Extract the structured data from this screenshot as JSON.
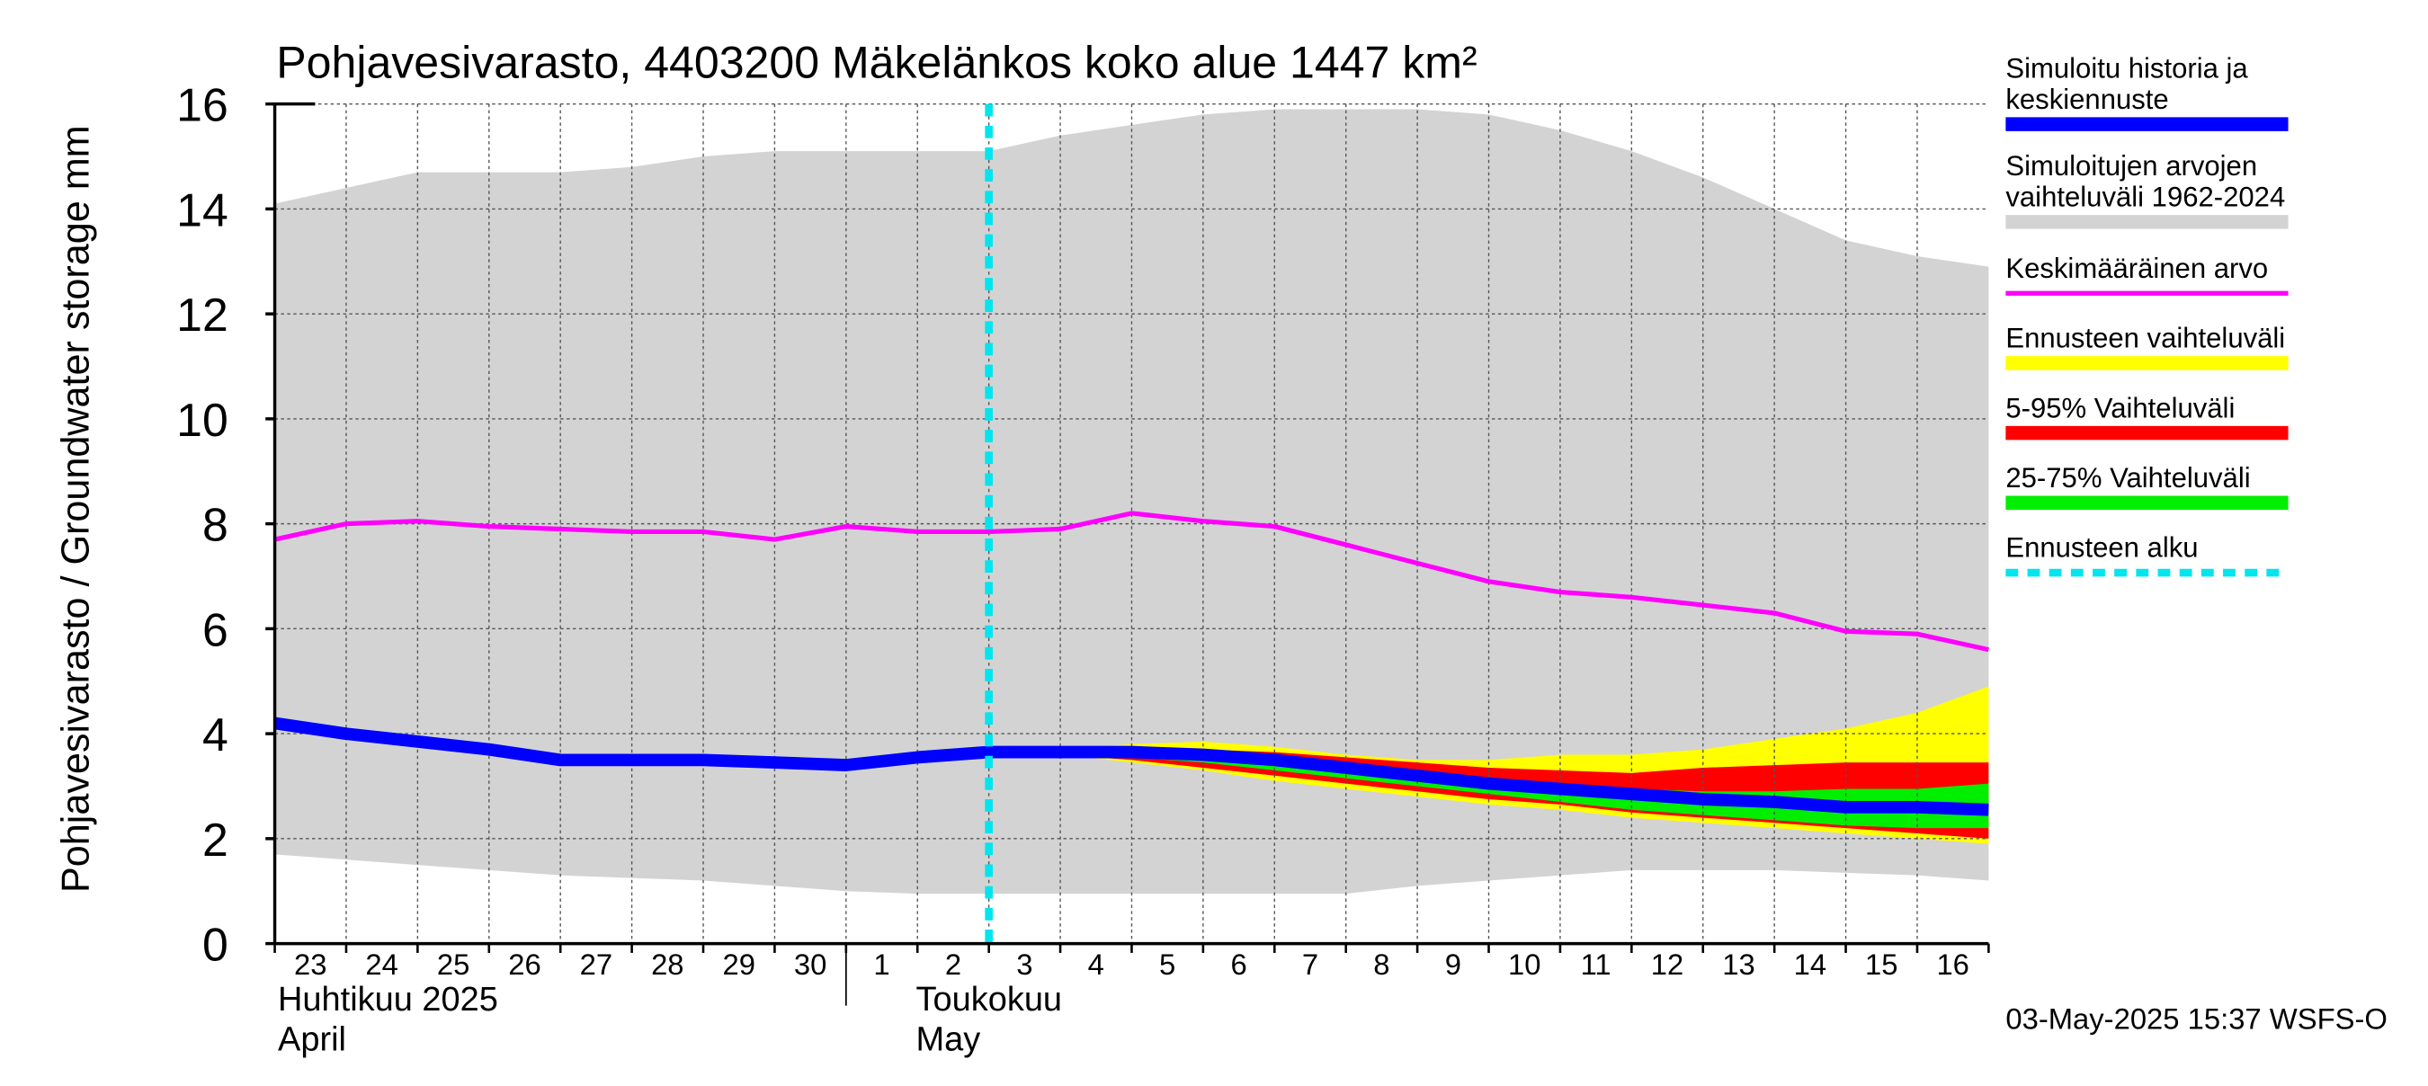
{
  "chart_data": {
    "type": "area",
    "title": "Pohjavesivarasto, 4403200 Mäkelänkos koko alue 1447 km²",
    "ylabel": "Pohjavesivarasto / Groundwater storage   mm",
    "ylim": [
      0,
      16
    ],
    "yticks": [
      0,
      2,
      4,
      6,
      8,
      10,
      12,
      14,
      16
    ],
    "grid": true,
    "legend_position": "right",
    "x_day_labels": [
      "23",
      "24",
      "25",
      "26",
      "27",
      "28",
      "29",
      "30",
      "1",
      "2",
      "3",
      "4",
      "5",
      "6",
      "7",
      "8",
      "9",
      "10",
      "11",
      "12",
      "13",
      "14",
      "15",
      "16"
    ],
    "month_labels": [
      {
        "line1": "Huhtikuu  2025",
        "line2": "April"
      },
      {
        "line1": "Toukokuu",
        "line2": "May"
      }
    ],
    "x_dates": [
      "2025-04-23",
      "2025-04-24",
      "2025-04-25",
      "2025-04-26",
      "2025-04-27",
      "2025-04-28",
      "2025-04-29",
      "2025-04-30",
      "2025-05-01",
      "2025-05-02",
      "2025-05-03",
      "2025-05-04",
      "2025-05-05",
      "2025-05-06",
      "2025-05-07",
      "2025-05-08",
      "2025-05-09",
      "2025-05-10",
      "2025-05-11",
      "2025-05-12",
      "2025-05-13",
      "2025-05-14",
      "2025-05-15",
      "2025-05-16",
      "2025-05-17"
    ],
    "forecast_start": "2025-05-03",
    "series": [
      {
        "name": "Simuloitujen arvojen vaihteluväli 1962-2024",
        "kind": "band",
        "color": "#d3d3d3",
        "upper": [
          14.1,
          14.4,
          14.7,
          14.7,
          14.7,
          14.8,
          15.0,
          15.1,
          15.1,
          15.1,
          15.1,
          15.4,
          15.6,
          15.8,
          15.9,
          15.9,
          15.9,
          15.8,
          15.5,
          15.1,
          14.6,
          14.0,
          13.4,
          13.1,
          12.9
        ],
        "lower": [
          1.7,
          1.6,
          1.5,
          1.4,
          1.3,
          1.25,
          1.2,
          1.1,
          1.0,
          0.95,
          0.95,
          0.95,
          0.95,
          0.95,
          0.95,
          0.95,
          1.1,
          1.2,
          1.3,
          1.4,
          1.4,
          1.4,
          1.35,
          1.3,
          1.2
        ]
      },
      {
        "name": "Ennusteen vaihteluväli",
        "kind": "band",
        "color": "#ffff00",
        "x_start_index": 10,
        "upper": [
          3.6,
          3.7,
          3.8,
          3.85,
          3.75,
          3.6,
          3.5,
          3.5,
          3.6,
          3.6,
          3.7,
          3.9,
          4.1,
          4.4,
          4.9
        ],
        "lower": [
          3.6,
          3.6,
          3.45,
          3.3,
          3.1,
          2.95,
          2.8,
          2.65,
          2.55,
          2.4,
          2.3,
          2.2,
          2.1,
          2.0,
          1.9
        ]
      },
      {
        "name": "5-95% Vaihteluväli",
        "kind": "band",
        "color": "#ff0000",
        "x_start_index": 10,
        "upper": [
          3.6,
          3.65,
          3.7,
          3.7,
          3.65,
          3.55,
          3.45,
          3.35,
          3.3,
          3.25,
          3.35,
          3.4,
          3.45,
          3.45,
          3.45
        ],
        "lower": [
          3.6,
          3.6,
          3.5,
          3.35,
          3.2,
          3.05,
          2.9,
          2.75,
          2.65,
          2.5,
          2.4,
          2.3,
          2.2,
          2.1,
          2.0
        ]
      },
      {
        "name": "25-75% Vaihteluväli",
        "kind": "band",
        "color": "#00ee00",
        "x_start_index": 10,
        "upper": [
          3.6,
          3.62,
          3.62,
          3.55,
          3.45,
          3.35,
          3.25,
          3.15,
          3.05,
          2.95,
          2.9,
          2.9,
          2.95,
          2.95,
          3.05
        ],
        "lower": [
          3.6,
          3.6,
          3.55,
          3.45,
          3.3,
          3.15,
          3.0,
          2.85,
          2.7,
          2.55,
          2.45,
          2.35,
          2.25,
          2.2,
          2.2
        ]
      },
      {
        "name": "Keskimääräinen arvo",
        "kind": "line",
        "color": "#ff00ff",
        "values": [
          7.7,
          8.0,
          8.05,
          7.95,
          7.9,
          7.85,
          7.85,
          7.7,
          7.95,
          7.85,
          7.85,
          7.9,
          8.2,
          8.05,
          7.95,
          7.6,
          7.25,
          6.9,
          6.7,
          6.6,
          6.45,
          6.3,
          5.95,
          5.9,
          5.6
        ]
      },
      {
        "name": "Simuloitu historia ja keskiennuste",
        "kind": "line",
        "color": "#0000ff",
        "values": [
          4.2,
          4.0,
          3.85,
          3.7,
          3.5,
          3.5,
          3.5,
          3.45,
          3.4,
          3.55,
          3.65,
          3.65,
          3.65,
          3.6,
          3.5,
          3.35,
          3.2,
          3.05,
          2.95,
          2.85,
          2.75,
          2.7,
          2.6,
          2.6,
          2.55
        ]
      },
      {
        "name": "Ennusteen alku",
        "kind": "vline",
        "color": "#00e5ee",
        "at": "2025-05-03"
      }
    ]
  },
  "legend": [
    {
      "lines": [
        "Simuloitu historia ja",
        "keskiennuste"
      ],
      "color": "#0000ff",
      "style": "thick"
    },
    {
      "lines": [
        "Simuloitujen arvojen",
        "vaihteluväli 1962-2024"
      ],
      "color": "#d3d3d3",
      "style": "thick"
    },
    {
      "lines": [
        "Keskimääräinen arvo"
      ],
      "color": "#ff00ff",
      "style": "thin"
    },
    {
      "lines": [
        "Ennusteen vaihteluväli"
      ],
      "color": "#ffff00",
      "style": "thick"
    },
    {
      "lines": [
        "5-95% Vaihteluväli"
      ],
      "color": "#ff0000",
      "style": "thick"
    },
    {
      "lines": [
        "25-75% Vaihteluväli"
      ],
      "color": "#00ee00",
      "style": "thick"
    },
    {
      "lines": [
        "Ennusteen alku"
      ],
      "color": "#00e5ee",
      "style": "dashed"
    }
  ],
  "footer": "03-May-2025 15:37 WSFS-O"
}
